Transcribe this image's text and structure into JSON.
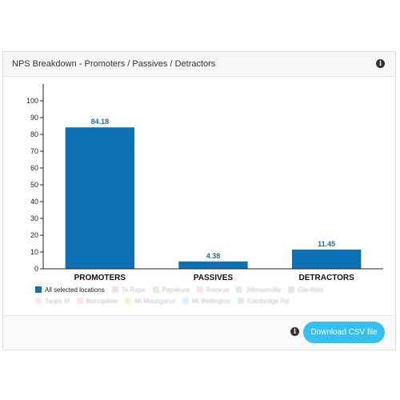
{
  "panel": {
    "title": "NPS Breakdown - Promoters / Passives / Detractors",
    "info_icon": "info-icon",
    "download_label": "Download CSV file"
  },
  "colors": {
    "bar": "#0d72b5",
    "label": "#1f6ea8",
    "axis": "#222222",
    "button": "#35c0ef"
  },
  "chart_data": {
    "type": "bar",
    "categories": [
      "PROMOTERS",
      "PASSIVES",
      "DETRACTORS"
    ],
    "series": [
      {
        "name": "All selected locations",
        "values": [
          84.18,
          4.38,
          11.45
        ]
      }
    ],
    "data_labels": [
      "84.18",
      "4.38",
      "11.45"
    ],
    "ylim": [
      0,
      110
    ],
    "yticks": [
      0,
      10,
      20,
      30,
      40,
      50,
      60,
      70,
      80,
      90,
      100
    ],
    "grid": false,
    "legend_position": "bottom-left"
  },
  "legend": {
    "rows": [
      [
        {
          "label": "All selected locations",
          "color": "#0d72b5",
          "faded": false
        },
        {
          "label": "Te Rapa",
          "color": "#f08a8a",
          "faded": true
        },
        {
          "label": "Papakura",
          "color": "#8fd18f",
          "faded": true
        },
        {
          "label": "Rotorua",
          "color": "#e8a0a0",
          "faded": true
        },
        {
          "label": "Johnsonville",
          "color": "#b0b0b0",
          "faded": true
        },
        {
          "label": "Glenfield",
          "color": "#a0a0a0",
          "faded": true
        }
      ],
      [
        {
          "label": "Taupo M",
          "color": "#f5b0b0",
          "faded": true
        },
        {
          "label": "Bishopdale",
          "color": "#f0a0a0",
          "faded": true
        },
        {
          "label": "Mt Maunganui",
          "color": "#e8d070",
          "faded": true
        },
        {
          "label": "Mt Wellington",
          "color": "#80c8e8",
          "faded": true
        },
        {
          "label": "Cambridge Rd",
          "color": "#80b8e0",
          "faded": true
        }
      ]
    ]
  }
}
